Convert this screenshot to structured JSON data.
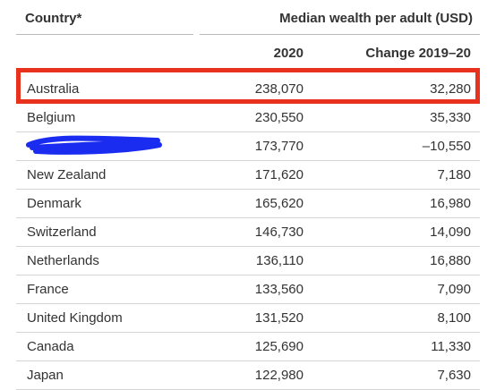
{
  "header": {
    "country_label": "Country*",
    "measure_label": "Median wealth per adult (USD)",
    "col_2020": "2020",
    "col_change": "Change 2019–20"
  },
  "rows": [
    {
      "country": "Australia",
      "value_2020": "238,070",
      "change": "32,280"
    },
    {
      "country": "Belgium",
      "value_2020": "230,550",
      "change": "35,330"
    },
    {
      "country": "",
      "value_2020": "173,770",
      "change": "–10,550"
    },
    {
      "country": "New Zealand",
      "value_2020": "171,620",
      "change": "7,180"
    },
    {
      "country": "Denmark",
      "value_2020": "165,620",
      "change": "16,980"
    },
    {
      "country": "Switzerland",
      "value_2020": "146,730",
      "change": "14,090"
    },
    {
      "country": "Netherlands",
      "value_2020": "136,110",
      "change": "16,880"
    },
    {
      "country": "France",
      "value_2020": "133,560",
      "change": "7,090"
    },
    {
      "country": "United Kingdom",
      "value_2020": "131,520",
      "change": "8,100"
    },
    {
      "country": "Canada",
      "value_2020": "125,690",
      "change": "11,330"
    },
    {
      "country": "Japan",
      "value_2020": "122,980",
      "change": "7,630"
    }
  ],
  "colors": {
    "highlight": "#e8321e",
    "scribble": "#1a2cf0"
  }
}
